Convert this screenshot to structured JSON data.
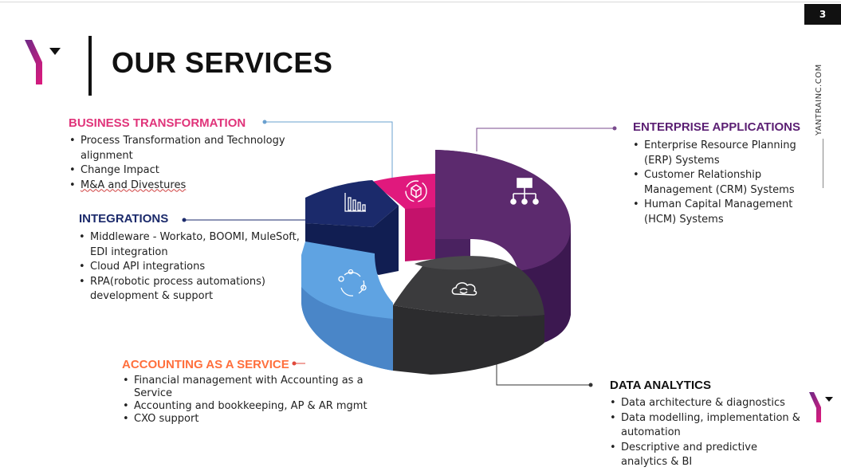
{
  "page": {
    "number": "3",
    "site": "YANTRAINC.COM",
    "title": "OUR SERVICES"
  },
  "colors": {
    "pink": "#e0197d",
    "purple": "#5c2a6e",
    "navy": "#1b2a6b",
    "blue": "#5fa3e2",
    "dark": "#3b3b3d",
    "accent_pink": "#e0347a",
    "accent_orange": "#ff6f3c",
    "accent_purple": "#5b1f73"
  },
  "segments": [
    {
      "name": "Business Transformation",
      "icon": "refresh-cube-icon"
    },
    {
      "name": "Enterprise Applications",
      "icon": "org-chart-icon"
    },
    {
      "name": "Integrations",
      "icon": "bar-chart-icon"
    },
    {
      "name": "Accounting as a Service",
      "icon": "cycle-icon"
    },
    {
      "name": "Data Analytics",
      "icon": "cloud-sync-icon"
    }
  ],
  "sections": {
    "business": {
      "heading": "BUSINESS TRANSFORMATION",
      "items": [
        "Process Transformation and Technology alignment",
        "Change Impact",
        "M&A and Divestures"
      ]
    },
    "enterprise": {
      "heading": "ENTERPRISE APPLICATIONS",
      "items": [
        "Enterprise Resource Planning (ERP) Systems",
        "Customer Relationship Management (CRM) Systems",
        "Human Capital Management (HCM) Systems"
      ]
    },
    "integrations": {
      "heading": "INTEGRATIONS",
      "items": [
        "Middleware - Workato, BOOMI, MuleSoft, EDI integration",
        "Cloud API integrations",
        "RPA(robotic process automations) development & support"
      ]
    },
    "accounting": {
      "heading": "ACCOUNTING AS A SERVICE",
      "items": [
        "Financial management with Accounting as a Service",
        "Accounting and bookkeeping, AP & AR  mgmt",
        "CXO support"
      ]
    },
    "analytics": {
      "heading": "DATA ANALYTICS",
      "items": [
        "Data architecture & diagnostics",
        "Data modelling, implementation & automation",
        "Descriptive and predictive analytics & BI"
      ]
    }
  }
}
